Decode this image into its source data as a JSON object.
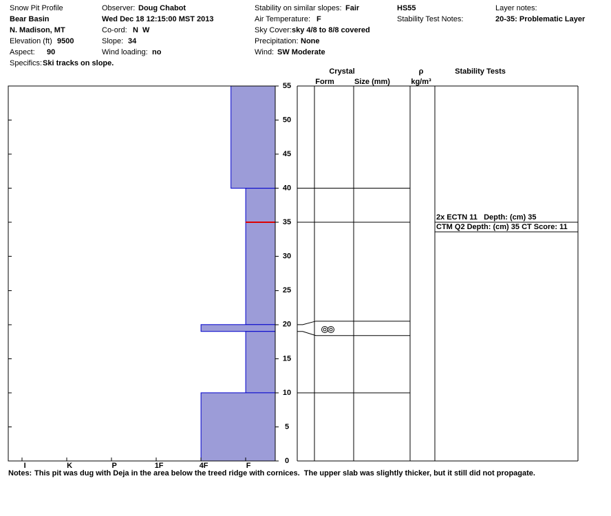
{
  "header": {
    "title": "Snow Pit Profile",
    "location": "Bear Basin",
    "region": "N. Madison, MT",
    "elevation": {
      "label": "Elevation (ft)",
      "value": 9500
    },
    "aspect": {
      "label": "Aspect:",
      "value": 90
    },
    "specifics": {
      "label": "Specifics:",
      "value": "Ski tracks on slope."
    },
    "observer": {
      "label": "Observer:",
      "value": "Doug Chabot"
    },
    "date": "Wed Dec 18 12:15:00 MST 2013",
    "coord": {
      "label": "Co-ord:",
      "value": "N  W"
    },
    "slope": {
      "label": "Slope:",
      "value": 34
    },
    "wind_loading": {
      "label": "Wind loading:",
      "value": "no"
    },
    "stability": {
      "label": "Stability on similar slopes:",
      "value": "Fair"
    },
    "air_temperature": {
      "label": "Air Temperature:",
      "value": "F"
    },
    "sky_cover": {
      "label": "Sky Cover:",
      "value": "sky 4/8 to 8/8 covered"
    },
    "precipitation": {
      "label": "Precipitation:",
      "value": "None"
    },
    "wind": {
      "label": "Wind:",
      "value": "SW Moderate"
    },
    "hs": "HS55",
    "stability_test_notes": "Stability Test Notes:",
    "layer_notes": {
      "label": "Layer notes:",
      "value": "20-35: Problematic Layer"
    }
  },
  "chart_data": {
    "type": "snow-profile",
    "ylim": [
      0,
      55
    ],
    "yticks": [
      0,
      5,
      10,
      15,
      20,
      25,
      30,
      35,
      40,
      45,
      50,
      55
    ],
    "xlim": [
      0.34,
      6.31
    ],
    "xticks": [
      {
        "value": 6,
        "label": "I"
      },
      {
        "value": 5,
        "label": "K"
      },
      {
        "value": 4,
        "label": "P"
      },
      {
        "value": 3,
        "label": "1F"
      },
      {
        "value": 2,
        "label": "4F"
      },
      {
        "value": 1,
        "label": "F"
      }
    ],
    "color": "#9c9cd8",
    "edge_color": "#0000cc",
    "layers": [
      {
        "top": 55,
        "bottom": 40,
        "hardness": 1.33
      },
      {
        "top": 40,
        "bottom": 20,
        "hardness": 1
      },
      {
        "top": 20,
        "bottom": 19,
        "hardness": 2
      },
      {
        "top": 19,
        "bottom": 10,
        "hardness": 1
      },
      {
        "top": 10,
        "bottom": 0,
        "hardness": 2
      }
    ],
    "problem_depth": 35,
    "problem_color": "#dd0000",
    "columns": {
      "crystal": "Crystal",
      "form": "Form",
      "size": "Size (mm)",
      "density": "ρ",
      "density_unit": "kg/m³",
      "stability": "Stability Tests"
    },
    "stability_tests": [
      {
        "text": "2x ECTN 11   Depth: (cm) 35",
        "depth": 35
      },
      {
        "text": "CTM Q2 Depth: (cm) 35 CT Score: 11",
        "depth": 35
      }
    ]
  },
  "notes": {
    "label": "Notes:",
    "text": "This pit was dug with Deja in the area below the treed ridge with cornices.  The upper slab was slightly thicker, but it still did not propagate."
  }
}
